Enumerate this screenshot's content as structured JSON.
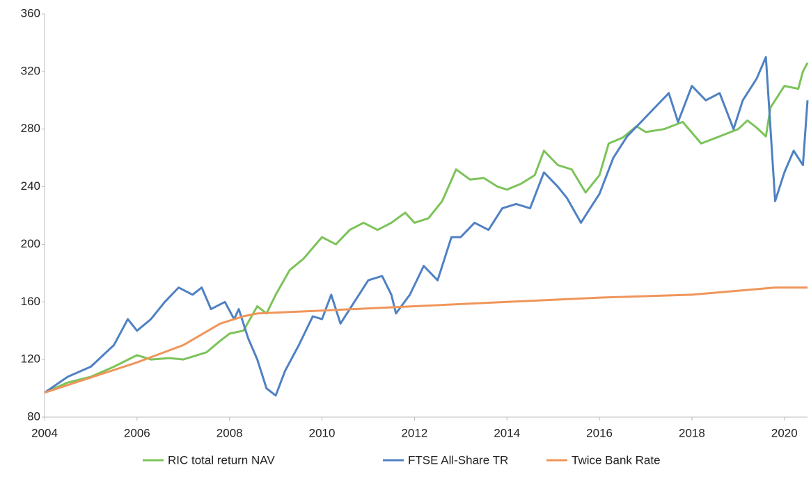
{
  "chart_data": {
    "type": "line",
    "xlim": [
      2004,
      2020.5
    ],
    "xticks": [
      2004,
      2006,
      2008,
      2010,
      2012,
      2014,
      2016,
      2018,
      2020
    ],
    "ylim": [
      80,
      360
    ],
    "yticks": [
      80,
      120,
      160,
      200,
      240,
      280,
      320,
      360
    ],
    "legend": "bottom",
    "series": [
      {
        "name": "RIC total return NAV",
        "color": "#7cc35a",
        "x": [
          2004,
          2004.5,
          2005,
          2005.5,
          2006,
          2006.3,
          2006.7,
          2007,
          2007.5,
          2007.8,
          2008,
          2008.3,
          2008.6,
          2008.8,
          2009,
          2009.3,
          2009.6,
          2010,
          2010.3,
          2010.6,
          2010.9,
          2011.2,
          2011.5,
          2011.8,
          2012,
          2012.3,
          2012.6,
          2012.9,
          2013.2,
          2013.5,
          2013.8,
          2014,
          2014.3,
          2014.6,
          2014.8,
          2015.1,
          2015.4,
          2015.7,
          2016,
          2016.2,
          2016.5,
          2016.8,
          2017,
          2017.4,
          2017.8,
          2018.2,
          2018.6,
          2019,
          2019.2,
          2019.4,
          2019.6,
          2019.7,
          2020,
          2020.3,
          2020.4,
          2020.5
        ],
        "values": [
          97,
          104,
          108,
          115,
          123,
          120,
          121,
          120,
          125,
          133,
          138,
          140,
          157,
          152,
          165,
          182,
          190,
          205,
          200,
          210,
          215,
          210,
          215,
          222,
          215,
          218,
          230,
          252,
          245,
          246,
          240,
          238,
          242,
          248,
          265,
          255,
          252,
          236,
          248,
          270,
          274,
          282,
          278,
          280,
          285,
          270,
          275,
          280,
          286,
          281,
          275,
          295,
          310,
          308,
          320,
          326
        ]
      },
      {
        "name": "FTSE All-Share TR",
        "color": "#4f81c3",
        "x": [
          2004,
          2004.5,
          2005,
          2005.5,
          2005.8,
          2006,
          2006.3,
          2006.6,
          2006.9,
          2007.2,
          2007.4,
          2007.6,
          2007.9,
          2008.1,
          2008.2,
          2008.4,
          2008.6,
          2008.8,
          2009,
          2009.2,
          2009.5,
          2009.8,
          2010,
          2010.2,
          2010.4,
          2010.7,
          2011,
          2011.3,
          2011.5,
          2011.6,
          2011.9,
          2012.2,
          2012.5,
          2012.8,
          2013,
          2013.3,
          2013.6,
          2013.9,
          2014.2,
          2014.5,
          2014.8,
          2015.1,
          2015.3,
          2015.6,
          2015.8,
          2016,
          2016.3,
          2016.6,
          2016.9,
          2017.2,
          2017.5,
          2017.7,
          2018,
          2018.3,
          2018.6,
          2018.9,
          2019.1,
          2019.4,
          2019.6,
          2019.8,
          2020,
          2020.2,
          2020.4,
          2020.5
        ],
        "values": [
          97,
          108,
          115,
          130,
          148,
          140,
          148,
          160,
          170,
          165,
          170,
          155,
          160,
          148,
          155,
          135,
          120,
          100,
          95,
          112,
          130,
          150,
          148,
          165,
          145,
          160,
          175,
          178,
          165,
          152,
          165,
          185,
          175,
          205,
          205,
          215,
          210,
          225,
          228,
          225,
          250,
          240,
          232,
          215,
          225,
          235,
          260,
          275,
          285,
          295,
          305,
          285,
          310,
          300,
          305,
          280,
          300,
          315,
          330,
          230,
          250,
          265,
          255,
          300
        ]
      },
      {
        "name": "Twice Bank Rate",
        "color": "#f0955a",
        "x": [
          2004,
          2006,
          2007,
          2007.8,
          2008.3,
          2008.6,
          2010,
          2012,
          2014,
          2016,
          2018,
          2019.8,
          2020.5
        ],
        "values": [
          97,
          118,
          130,
          145,
          150,
          152,
          154,
          157,
          160,
          163,
          165,
          170,
          170
        ]
      }
    ]
  }
}
